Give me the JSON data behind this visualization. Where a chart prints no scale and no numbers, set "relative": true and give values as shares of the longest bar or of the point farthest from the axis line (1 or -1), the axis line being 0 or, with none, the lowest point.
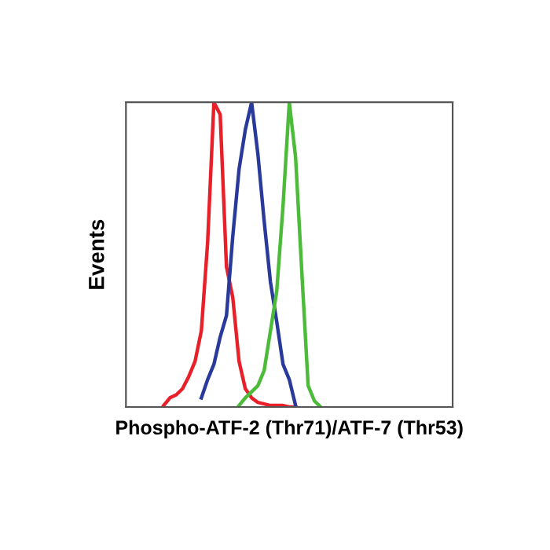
{
  "chart_data": {
    "type": "line",
    "xlabel": "Phospho-ATF-2 (Thr71)/ATF-7 (Thr53)",
    "ylabel": "Events",
    "relative": true,
    "marker": "none",
    "line_style": "solid",
    "categories": [
      null,
      null,
      null,
      null,
      null,
      null,
      null,
      null,
      null,
      null,
      null,
      null,
      null,
      null,
      null,
      null,
      null,
      null,
      null,
      null,
      null,
      null,
      null,
      null,
      null,
      null,
      null,
      null,
      null,
      null,
      null,
      null,
      null,
      null,
      null,
      null,
      null,
      null,
      null,
      null,
      null,
      null,
      null,
      null,
      null,
      null,
      null,
      null,
      null,
      null,
      null,
      null,
      null
    ],
    "series": [
      {
        "color": "#e8202a",
        "values": [
          null,
          null,
          null,
          null,
          null,
          null,
          0.005,
          0.03,
          0.04,
          0.06,
          0.1,
          0.15,
          0.25,
          0.54,
          1.0,
          0.96,
          0.46,
          0.36,
          0.15,
          0.06,
          0.03,
          0.015,
          0.01,
          0.005,
          0.005,
          0.005,
          0,
          0,
          null,
          null,
          null,
          null,
          null,
          null,
          null,
          null,
          null,
          null,
          null,
          null,
          null,
          null,
          null,
          null,
          null,
          null,
          null,
          null,
          null,
          null,
          null,
          null,
          null
        ]
      },
      {
        "color": "#2a3a9a",
        "values": [
          null,
          null,
          null,
          null,
          null,
          null,
          null,
          null,
          null,
          null,
          null,
          null,
          0.03,
          0.09,
          0.14,
          0.23,
          0.3,
          0.56,
          0.78,
          0.91,
          1.0,
          0.83,
          0.61,
          0.41,
          0.28,
          0.14,
          0.09,
          0.005,
          null,
          null,
          null,
          null,
          null,
          null,
          null,
          null,
          null,
          null,
          null,
          null,
          null,
          null,
          null,
          null,
          null,
          null,
          null,
          null,
          null,
          null,
          null,
          null,
          null
        ]
      },
      {
        "color": "#4cbb3a",
        "values": [
          null,
          null,
          null,
          null,
          null,
          null,
          null,
          null,
          null,
          null,
          null,
          null,
          null,
          null,
          null,
          null,
          null,
          null,
          0.005,
          0.03,
          0.05,
          0.07,
          0.12,
          0.25,
          0.38,
          0.66,
          1.0,
          0.82,
          0.44,
          0.07,
          0.02,
          0,
          null,
          null,
          null,
          null,
          null,
          null,
          null,
          null,
          null,
          null,
          null,
          null,
          null,
          null,
          null,
          null,
          null,
          null,
          null,
          null,
          null
        ]
      }
    ]
  }
}
